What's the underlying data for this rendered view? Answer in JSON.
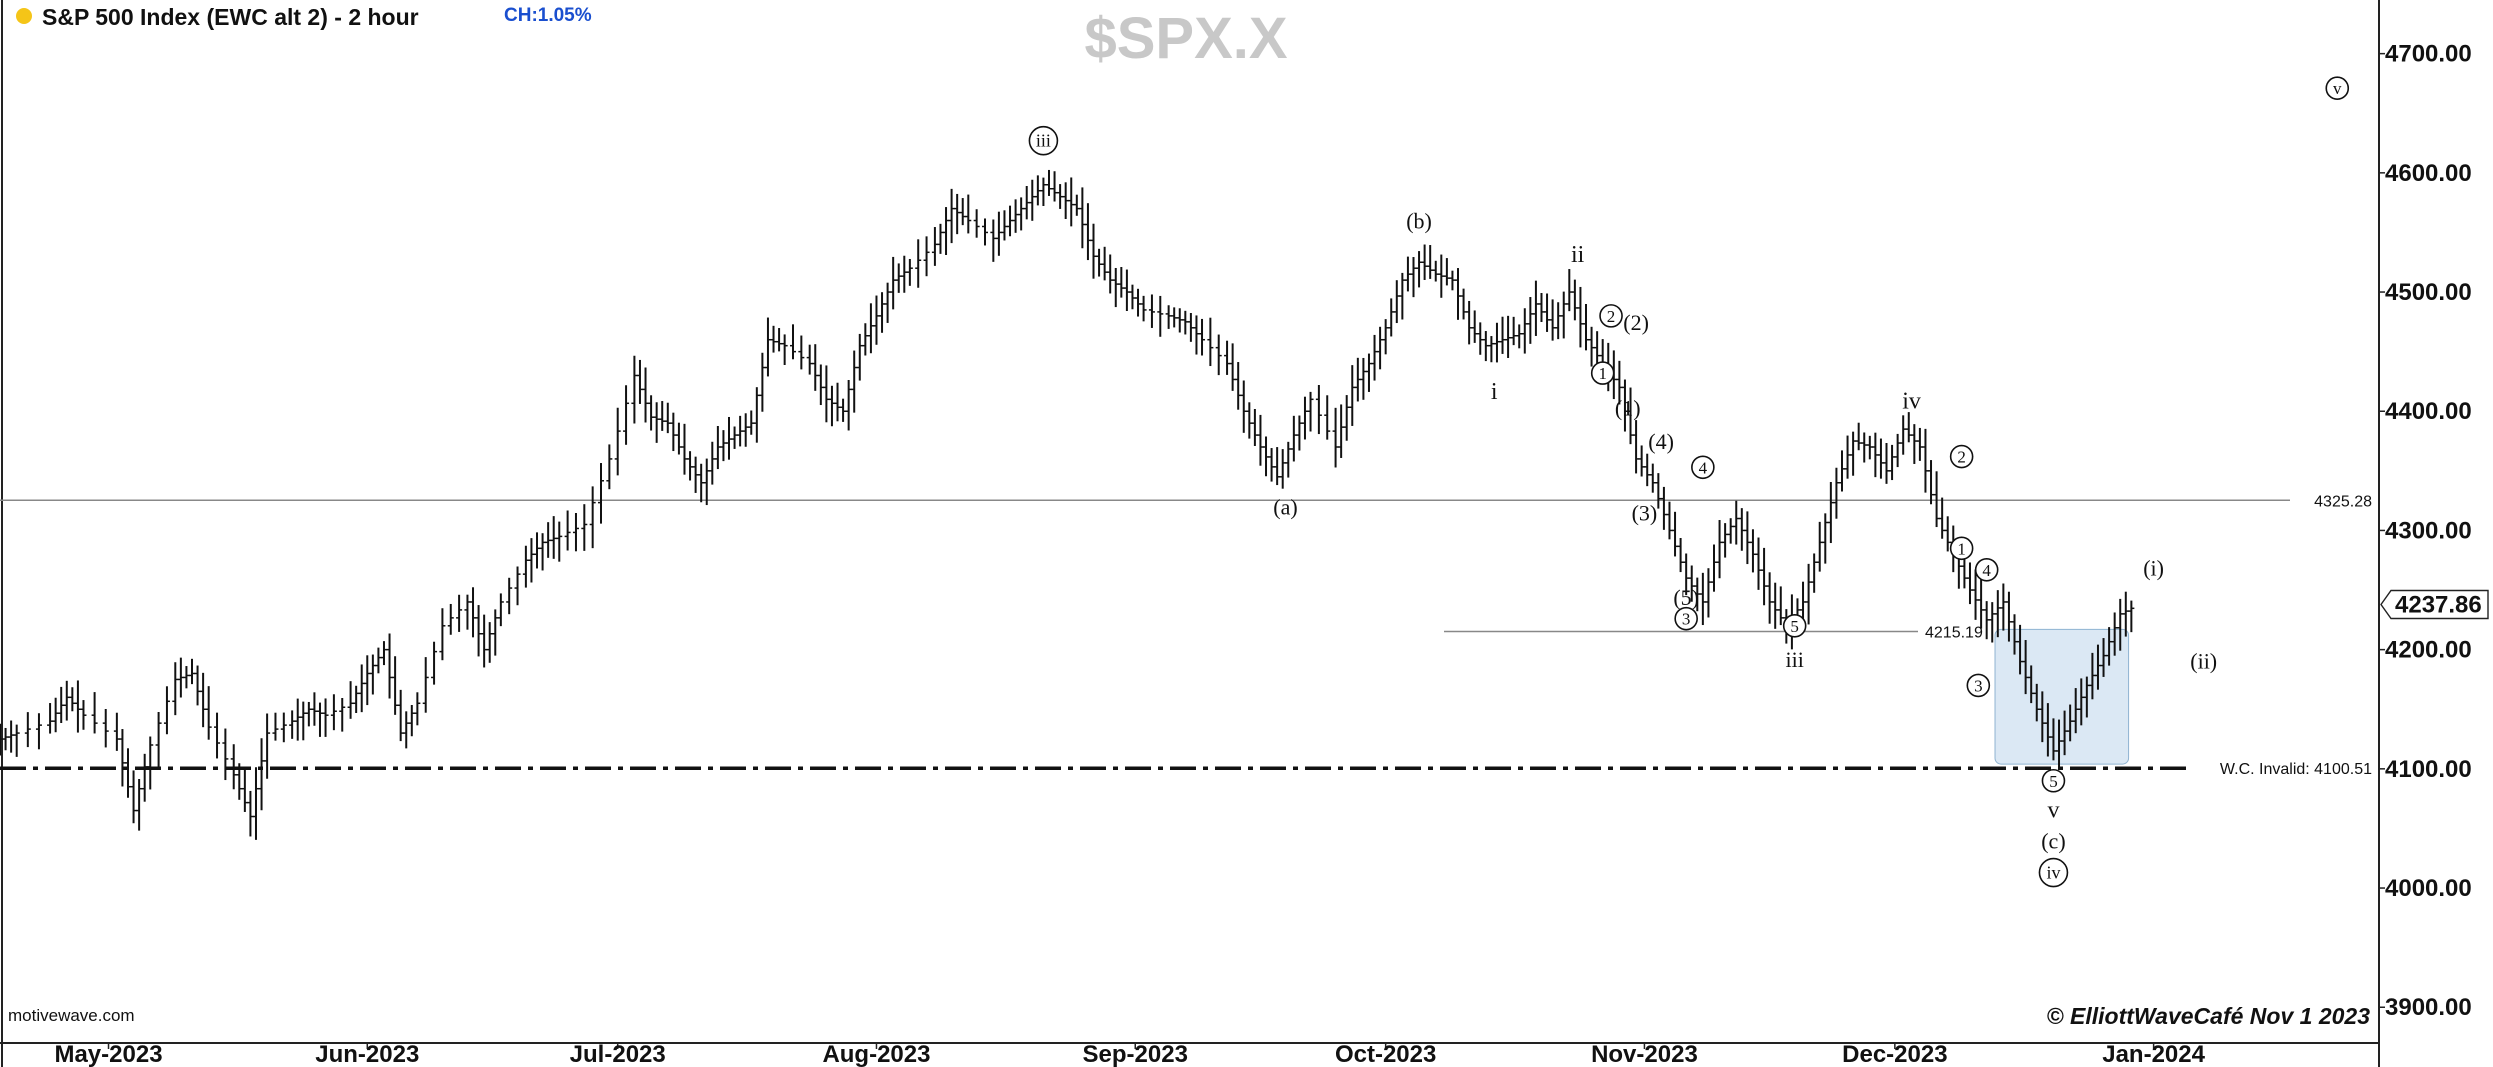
{
  "header": {
    "title": "S&P 500 Index (EWC alt 2) - 2 hour",
    "change": "CH:1.05%",
    "symbol": "$SPX.X",
    "dot_color": "#f5c518",
    "change_color": "#1a4fcf"
  },
  "footer": {
    "source": "motivewave.com",
    "copyright": "© ElliottWaveCafé Nov 1  2023"
  },
  "chart_data": {
    "type": "bar",
    "title": "S&P 500 Index (EWC alt 2) - 2 hour",
    "xlabel": "",
    "ylabel": "",
    "x_ticks": [
      "May-2023",
      "Jun-2023",
      "Jul-2023",
      "Aug-2023",
      "Sep-2023",
      "Oct-2023",
      "Nov-2023",
      "Dec-2023",
      "Jan-2024"
    ],
    "y_ticks": [
      "3900.00",
      "4000.00",
      "4100.00",
      "4200.00",
      "4300.00",
      "4400.00",
      "4500.00",
      "4600.00",
      "4700.00"
    ],
    "ylim": [
      3870,
      4745
    ],
    "x_range": [
      "2023-04-18",
      "2024-01-28"
    ],
    "last_price": "4237.86",
    "series": [
      {
        "style": "ohlc",
        "color": "#111111",
        "points": [
          [
            "2023-04-18",
            4125
          ],
          [
            "2023-04-20",
            4130
          ],
          [
            "2023-04-24",
            4140
          ],
          [
            "2023-04-26",
            4160
          ],
          [
            "2023-04-28",
            4145
          ],
          [
            "2023-05-02",
            4125
          ],
          [
            "2023-05-04",
            4065
          ],
          [
            "2023-05-06",
            4120
          ],
          [
            "2023-05-09",
            4175
          ],
          [
            "2023-05-11",
            4180
          ],
          [
            "2023-05-13",
            4135
          ],
          [
            "2023-05-16",
            4095
          ],
          [
            "2023-05-18",
            4060
          ],
          [
            "2023-05-20",
            4130
          ],
          [
            "2023-05-23",
            4140
          ],
          [
            "2023-05-25",
            4150
          ],
          [
            "2023-05-27",
            4145
          ],
          [
            "2023-05-30",
            4155
          ],
          [
            "2023-06-01",
            4180
          ],
          [
            "2023-06-03",
            4200
          ],
          [
            "2023-06-05",
            4130
          ],
          [
            "2023-06-07",
            4155
          ],
          [
            "2023-06-10",
            4220
          ],
          [
            "2023-06-13",
            4240
          ],
          [
            "2023-06-15",
            4200
          ],
          [
            "2023-06-17",
            4240
          ],
          [
            "2023-06-20",
            4275
          ],
          [
            "2023-06-22",
            4290
          ],
          [
            "2023-06-24",
            4295
          ],
          [
            "2023-06-27",
            4305
          ],
          [
            "2023-06-30",
            4360
          ],
          [
            "2023-07-03",
            4430
          ],
          [
            "2023-07-05",
            4395
          ],
          [
            "2023-07-07",
            4390
          ],
          [
            "2023-07-09",
            4360
          ],
          [
            "2023-07-11",
            4340
          ],
          [
            "2023-07-13",
            4370
          ],
          [
            "2023-07-15",
            4380
          ],
          [
            "2023-07-17",
            4390
          ],
          [
            "2023-07-19",
            4460
          ],
          [
            "2023-07-21",
            4455
          ],
          [
            "2023-07-24",
            4440
          ],
          [
            "2023-07-26",
            4410
          ],
          [
            "2023-07-28",
            4400
          ],
          [
            "2023-07-30",
            4455
          ],
          [
            "2023-08-01",
            4480
          ],
          [
            "2023-08-03",
            4510
          ],
          [
            "2023-08-05",
            4520
          ],
          [
            "2023-08-08",
            4540
          ],
          [
            "2023-08-10",
            4570
          ],
          [
            "2023-08-12",
            4560
          ],
          [
            "2023-08-15",
            4545
          ],
          [
            "2023-08-17",
            4560
          ],
          [
            "2023-08-19",
            4575
          ],
          [
            "2023-08-21",
            4590
          ],
          [
            "2023-08-23",
            4580
          ],
          [
            "2023-08-25",
            4570
          ],
          [
            "2023-08-27",
            4530
          ],
          [
            "2023-08-29",
            4510
          ],
          [
            "2023-08-31",
            4500
          ],
          [
            "2023-09-02",
            4485
          ],
          [
            "2023-09-05",
            4480
          ],
          [
            "2023-09-07",
            4475
          ],
          [
            "2023-09-09",
            4460
          ],
          [
            "2023-09-12",
            4440
          ],
          [
            "2023-09-14",
            4400
          ],
          [
            "2023-09-16",
            4370
          ],
          [
            "2023-09-18",
            4345
          ],
          [
            "2023-09-20",
            4380
          ],
          [
            "2023-09-22",
            4410
          ],
          [
            "2023-09-25",
            4370
          ],
          [
            "2023-09-27",
            4420
          ],
          [
            "2023-09-29",
            4440
          ],
          [
            "2023-10-01",
            4470
          ],
          [
            "2023-10-03",
            4510
          ],
          [
            "2023-10-05",
            4525
          ],
          [
            "2023-10-07",
            4515
          ],
          [
            "2023-10-09",
            4510
          ],
          [
            "2023-10-11",
            4470
          ],
          [
            "2023-10-13",
            4455
          ],
          [
            "2023-10-15",
            4460
          ],
          [
            "2023-10-17",
            4465
          ],
          [
            "2023-10-19",
            4490
          ],
          [
            "2023-10-21",
            4470
          ],
          [
            "2023-10-23",
            4500
          ],
          [
            "2023-10-25",
            4460
          ],
          [
            "2023-10-27",
            4440
          ],
          [
            "2023-10-29",
            4420
          ],
          [
            "2023-10-31",
            4360
          ],
          [
            "2023-11-02",
            4340
          ],
          [
            "2023-11-04",
            4300
          ],
          [
            "2023-11-06",
            4260
          ],
          [
            "2023-11-08",
            4240
          ],
          [
            "2023-11-10",
            4290
          ],
          [
            "2023-11-12",
            4310
          ],
          [
            "2023-11-14",
            4280
          ],
          [
            "2023-11-16",
            4240
          ],
          [
            "2023-11-18",
            4220
          ],
          [
            "2023-11-20",
            4240
          ],
          [
            "2023-11-22",
            4290
          ],
          [
            "2023-11-24",
            4340
          ],
          [
            "2023-11-26",
            4375
          ],
          [
            "2023-11-28",
            4370
          ],
          [
            "2023-11-30",
            4350
          ],
          [
            "2023-12-02",
            4385
          ],
          [
            "2023-12-04",
            4370
          ],
          [
            "2023-12-06",
            4310
          ],
          [
            "2023-12-08",
            4280
          ],
          [
            "2023-12-10",
            4250
          ],
          [
            "2023-12-12",
            4225
          ],
          [
            "2023-12-14",
            4240
          ],
          [
            "2023-12-16",
            4190
          ],
          [
            "2023-12-18",
            4150
          ],
          [
            "2023-12-20",
            4115
          ],
          [
            "2023-12-22",
            4140
          ],
          [
            "2023-12-24",
            4170
          ],
          [
            "2023-12-26",
            4195
          ],
          [
            "2023-12-28",
            4230
          ],
          [
            "2023-12-30",
            4237
          ]
        ]
      }
    ],
    "levels": [
      {
        "value": 4325.28,
        "label": "4325.28",
        "style": "solid",
        "span": "full"
      },
      {
        "value": 4215.19,
        "label": "4215.19",
        "style": "solid",
        "span": "partial"
      },
      {
        "value": 4100.51,
        "label": "W.C. Invalid: 4100.51",
        "style": "dash-dot"
      }
    ],
    "highlight_box": {
      "x": [
        "2023-12-13",
        "2023-12-29"
      ],
      "y": [
        4104,
        4217
      ],
      "color": "#dbe8f4"
    },
    "annotations": [
      {
        "text": "iii",
        "x": "2023-08-21",
        "y": 4627,
        "style": "circled"
      },
      {
        "text": "(b)",
        "x": "2023-10-05",
        "y": 4560,
        "style": "plain"
      },
      {
        "text": "ii",
        "x": "2023-10-24",
        "y": 4532,
        "style": "plain"
      },
      {
        "text": "2",
        "x": "2023-10-28",
        "y": 4480,
        "style": "circled"
      },
      {
        "text": "(2)",
        "x": "2023-10-31",
        "y": 4475,
        "style": "plain"
      },
      {
        "text": "1",
        "x": "2023-10-27",
        "y": 4432,
        "style": "circled"
      },
      {
        "text": "(1)",
        "x": "2023-10-30",
        "y": 4403,
        "style": "plain"
      },
      {
        "text": "i",
        "x": "2023-10-14",
        "y": 4417,
        "style": "plain"
      },
      {
        "text": "(4)",
        "x": "2023-11-03",
        "y": 4375,
        "style": "plain"
      },
      {
        "text": "(3)",
        "x": "2023-11-01",
        "y": 4315,
        "style": "plain"
      },
      {
        "text": "4",
        "x": "2023-11-08",
        "y": 4353,
        "style": "circled"
      },
      {
        "text": "(a)",
        "x": "2023-09-19",
        "y": 4320,
        "style": "plain"
      },
      {
        "text": "(5)",
        "x": "2023-11-06",
        "y": 4244,
        "style": "plain"
      },
      {
        "text": "3",
        "x": "2023-11-06",
        "y": 4226,
        "style": "circled"
      },
      {
        "text": "5",
        "x": "2023-11-19",
        "y": 4220,
        "style": "circled"
      },
      {
        "text": "iii",
        "x": "2023-11-19",
        "y": 4192,
        "style": "plain"
      },
      {
        "text": "iv",
        "x": "2023-12-03",
        "y": 4409,
        "style": "plain"
      },
      {
        "text": "2",
        "x": "2023-12-09",
        "y": 4362,
        "style": "circled"
      },
      {
        "text": "1",
        "x": "2023-12-09",
        "y": 4285,
        "style": "circled"
      },
      {
        "text": "4",
        "x": "2023-12-12",
        "y": 4267,
        "style": "circled"
      },
      {
        "text": "3",
        "x": "2023-12-11",
        "y": 4170,
        "style": "circled"
      },
      {
        "text": "5",
        "x": "2023-12-20",
        "y": 4090,
        "style": "circled"
      },
      {
        "text": "v",
        "x": "2023-12-20",
        "y": 4066,
        "style": "plain"
      },
      {
        "text": "(c)",
        "x": "2023-12-20",
        "y": 4040,
        "style": "plain"
      },
      {
        "text": "iv",
        "x": "2023-12-20",
        "y": 4013,
        "style": "circled"
      },
      {
        "text": "(i)",
        "x": "2024-01-01",
        "y": 4269,
        "style": "plain"
      },
      {
        "text": "(ii)",
        "x": "2024-01-07",
        "y": 4191,
        "style": "plain"
      },
      {
        "text": "v",
        "x": "2024-01-23",
        "y": 4671,
        "style": "circled"
      }
    ],
    "legend": "none",
    "grid": false
  }
}
